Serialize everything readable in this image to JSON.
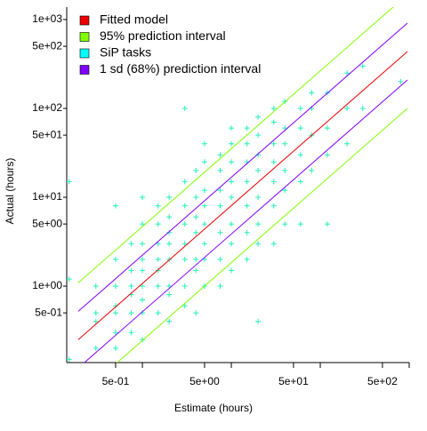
{
  "chart_data": {
    "type": "scatter",
    "x_label": "Estimate (hours)",
    "y_label": "Actual (hours)",
    "xlog": true,
    "ylog": true,
    "xlim": [
      0.141,
      1000
    ],
    "ylim": [
      0.138,
      1380
    ],
    "xticks": [
      {
        "value": 0.5,
        "label": "5e-01"
      },
      {
        "value": 5,
        "label": "5e+00"
      },
      {
        "value": 50,
        "label": "5e+01"
      },
      {
        "value": 500,
        "label": "5e+02"
      }
    ],
    "xticks_minor": [
      1,
      10,
      100,
      1000
    ],
    "yticks": [
      {
        "value": 1000,
        "label": "1e+03"
      },
      {
        "value": 500,
        "label": "5e+02"
      },
      {
        "value": 100,
        "label": "1e+02"
      },
      {
        "value": 50,
        "label": "5e+01"
      },
      {
        "value": 10,
        "label": "1e+01"
      },
      {
        "value": 5,
        "label": "5e+00"
      },
      {
        "value": 1,
        "label": "1e+00"
      },
      {
        "value": 0.5,
        "label": "5e-01"
      }
    ],
    "legend": "top-left",
    "series": [
      {
        "name": "Fitted model",
        "color": "#ee0000",
        "type": "line",
        "lines": [
          {
            "x": [
              0.19,
              955
            ],
            "values": [
              0.25,
              437
            ]
          }
        ]
      },
      {
        "name": "95% prediction interval",
        "color": "#80ff00",
        "type": "line",
        "lines": [
          {
            "x": [
              0.19,
              955
            ],
            "values": [
              1.09,
              1910
            ]
          },
          {
            "x": [
              0.19,
              955
            ],
            "values": [
              0.057,
              100
            ]
          }
        ]
      },
      {
        "name": "SiP tasks",
        "color": "#00ffff",
        "marker_color": "#20f0b8",
        "type": "scatter",
        "x": [
          0.15,
          0.15,
          0.15,
          0.3,
          0.3,
          0.3,
          0.3,
          0.5,
          0.5,
          0.5,
          0.5,
          0.5,
          0.5,
          0.5,
          0.75,
          0.75,
          0.75,
          0.75,
          0.75,
          0.75,
          1,
          1,
          1,
          1,
          1,
          1,
          1,
          1,
          1,
          1.5,
          1.5,
          1.5,
          1.5,
          1.5,
          1.5,
          1.5,
          2,
          2,
          2,
          2,
          2,
          2,
          2,
          2,
          3,
          3,
          3,
          3,
          3,
          3,
          3,
          3,
          4,
          4,
          4,
          4,
          4,
          4,
          4,
          5,
          5,
          5,
          5,
          5,
          5,
          5,
          5,
          7.5,
          7.5,
          7.5,
          7.5,
          7.5,
          7.5,
          7.5,
          10,
          10,
          10,
          10,
          10,
          10,
          10,
          10,
          15,
          15,
          15,
          15,
          15,
          15,
          15,
          20,
          20,
          20,
          20,
          20,
          20,
          20,
          20,
          30,
          30,
          30,
          30,
          30,
          30,
          30,
          40,
          40,
          40,
          40,
          40,
          40,
          60,
          60,
          60,
          60,
          60,
          80,
          80,
          80,
          80,
          120,
          120,
          120,
          120,
          200,
          200,
          200,
          300,
          300,
          800
        ],
        "values": [
          15,
          1.2,
          0.15,
          0.2,
          0.5,
          1.0,
          0.4,
          0.3,
          0.6,
          1,
          2,
          0.2,
          0.5,
          8,
          0.5,
          1,
          1.5,
          0.3,
          3,
          0.8,
          0.5,
          1,
          2,
          3,
          0.7,
          5,
          0.25,
          1.5,
          10,
          1,
          2,
          3,
          0.5,
          5,
          1.5,
          8,
          1,
          2,
          4,
          0.8,
          6,
          10,
          0.4,
          3,
          2,
          3,
          5,
          1,
          8,
          15,
          0.6,
          100,
          2,
          4,
          6,
          10,
          1.5,
          20,
          0.5,
          3,
          5,
          8,
          12,
          2,
          25,
          1,
          40,
          4,
          8,
          12,
          20,
          2,
          30,
          1,
          5,
          10,
          15,
          25,
          3,
          40,
          1.5,
          60,
          8,
          15,
          25,
          40,
          4,
          60,
          2,
          10,
          20,
          30,
          50,
          5,
          80,
          3,
          0.4,
          15,
          25,
          40,
          70,
          8,
          100,
          3,
          20,
          40,
          60,
          12,
          120,
          5,
          30,
          60,
          100,
          15,
          5,
          50,
          100,
          150,
          20,
          60,
          150,
          30,
          5,
          100,
          250,
          40,
          100,
          300,
          200
        ]
      },
      {
        "name": "1 sd (68%) prediction interval",
        "color": "#8000ff",
        "type": "line",
        "lines": [
          {
            "x": [
              0.19,
              955
            ],
            "values": [
              0.52,
              913
            ]
          },
          {
            "x": [
              0.19,
              955
            ],
            "values": [
              0.12,
              209
            ]
          }
        ]
      }
    ]
  }
}
